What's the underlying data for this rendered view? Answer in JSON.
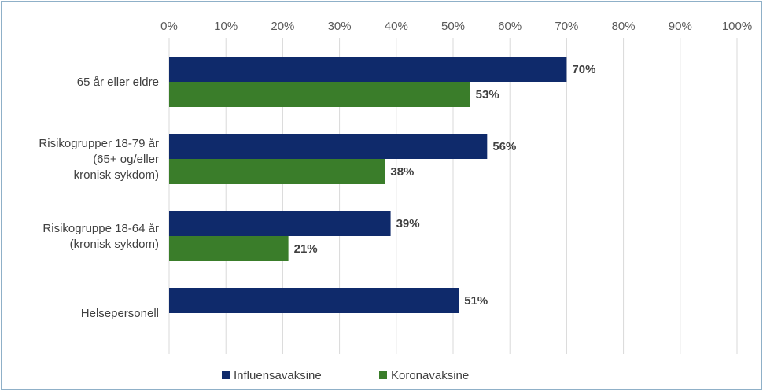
{
  "chart_data": {
    "type": "bar",
    "orientation": "horizontal",
    "title": "",
    "xlim": [
      0,
      100
    ],
    "x_ticks": [
      "0%",
      "10%",
      "20%",
      "30%",
      "40%",
      "50%",
      "60%",
      "70%",
      "80%",
      "90%",
      "100%"
    ],
    "categories": [
      [
        "65 år eller eldre"
      ],
      [
        "Risikogrupper 18-79 år",
        "(65+ og/eller",
        "kronisk sykdom)"
      ],
      [
        "Risikogruppe 18-64 år",
        "(kronisk sykdom)"
      ],
      [
        "Helsepersonell"
      ]
    ],
    "series": [
      {
        "name": "Influensavaksine",
        "color": "#0f2a6b",
        "values": [
          70,
          56,
          39,
          51
        ],
        "labels": [
          "70%",
          "56%",
          "39%",
          "51%"
        ]
      },
      {
        "name": "Koronavaksine",
        "color": "#3a7d2a",
        "values": [
          53,
          38,
          21,
          null
        ],
        "labels": [
          "53%",
          "38%",
          "21%",
          null
        ]
      }
    ],
    "legend_position": "bottom",
    "grid": true
  }
}
